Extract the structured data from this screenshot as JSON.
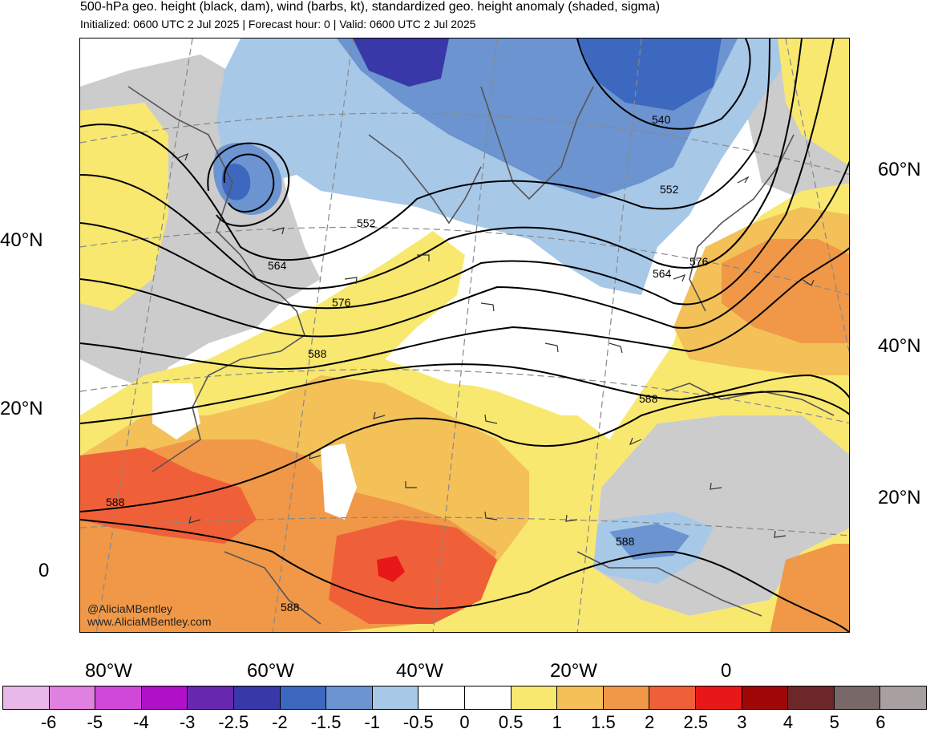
{
  "header": {
    "title": "500-hPa geo. height (black, dam), wind (barbs, kt), standardized geo. height anomaly (shaded, sigma)",
    "subtitle": "Initialized: 0600 UTC 2 Jul 2025 | Forecast hour: 0 | Valid: 0600 UTC 2 Jul 2025"
  },
  "map": {
    "left_lat_labels": [
      "40°N",
      "20°N",
      "0"
    ],
    "right_lat_labels": [
      "60°N",
      "40°N",
      "20°N"
    ],
    "lon_labels": [
      "80°W",
      "60°W",
      "40°W",
      "20°W",
      "0"
    ],
    "contour_labels": [
      "540",
      "552",
      "552",
      "564",
      "564",
      "576",
      "576",
      "588",
      "588",
      "588",
      "588",
      "588"
    ],
    "credit_handle": "@AliciaMBentley",
    "credit_url": "www.AliciaMBentley.com"
  },
  "colorbar": {
    "labels": [
      "-6",
      "-5",
      "-4",
      "-3",
      "-2.5",
      "-2",
      "-1.5",
      "-1",
      "-0.5",
      "0",
      "0.5",
      "1",
      "1.5",
      "2",
      "2.5",
      "3",
      "4",
      "5",
      "6"
    ],
    "colors": [
      "#e8b8e8",
      "#e080e0",
      "#d048d8",
      "#b010c8",
      "#6828b0",
      "#3838a8",
      "#3c68c0",
      "#6c94d0",
      "#a8c8e8",
      "#ffffff",
      "#ffffff",
      "#f8e870",
      "#f4c058",
      "#f09848",
      "#f06038",
      "#e81818",
      "#a00808",
      "#6c2828",
      "#786868",
      "#a8a0a0"
    ]
  }
}
